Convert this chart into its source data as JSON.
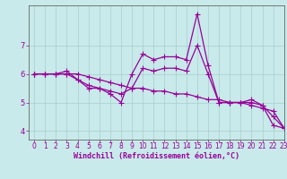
{
  "xlabel": "Windchill (Refroidissement éolien,°C)",
  "ylabel": "",
  "bg_color": "#c8eaea",
  "line_color": "#990099",
  "grid_color": "#aacccc",
  "axis_color": "#666666",
  "xlim": [
    -0.5,
    23
  ],
  "ylim": [
    3.7,
    8.4
  ],
  "xticks": [
    0,
    1,
    2,
    3,
    4,
    5,
    6,
    7,
    8,
    9,
    10,
    11,
    12,
    13,
    14,
    15,
    16,
    17,
    18,
    19,
    20,
    21,
    22,
    23
  ],
  "yticks": [
    4,
    5,
    6,
    7
  ],
  "lines": [
    {
      "x": [
        0,
        1,
        2,
        3,
        4,
        5,
        6,
        7,
        8,
        9,
        10,
        11,
        12,
        13,
        14,
        15,
        16,
        17,
        18,
        19,
        20,
        21,
        22,
        23
      ],
      "y": [
        6.0,
        6.0,
        6.0,
        6.0,
        5.8,
        5.5,
        5.5,
        5.3,
        5.0,
        6.0,
        6.7,
        6.5,
        6.6,
        6.6,
        6.5,
        8.1,
        6.3,
        5.0,
        5.0,
        5.0,
        5.1,
        4.9,
        4.2,
        4.1
      ]
    },
    {
      "x": [
        0,
        1,
        2,
        3,
        4,
        5,
        6,
        7,
        8,
        9,
        10,
        11,
        12,
        13,
        14,
        15,
        16,
        17,
        18,
        19,
        20,
        21,
        22,
        23
      ],
      "y": [
        6.0,
        6.0,
        6.0,
        6.0,
        6.0,
        5.9,
        5.8,
        5.7,
        5.6,
        5.5,
        5.5,
        5.4,
        5.4,
        5.3,
        5.3,
        5.2,
        5.1,
        5.1,
        5.0,
        5.0,
        4.9,
        4.8,
        4.7,
        4.1
      ]
    },
    {
      "x": [
        0,
        1,
        2,
        3,
        4,
        5,
        6,
        7,
        8,
        9,
        10,
        11,
        12,
        13,
        14,
        15,
        16,
        17,
        18,
        19,
        20,
        21,
        22,
        23
      ],
      "y": [
        6.0,
        6.0,
        6.0,
        6.1,
        5.8,
        5.6,
        5.5,
        5.4,
        5.3,
        5.5,
        6.2,
        6.1,
        6.2,
        6.2,
        6.1,
        7.0,
        6.0,
        5.0,
        5.0,
        5.0,
        5.0,
        4.9,
        4.5,
        4.1
      ]
    }
  ],
  "marker": "+",
  "markersize": 4,
  "linewidth": 0.9,
  "label_fontsize": 6.0,
  "tick_fontsize": 5.5
}
